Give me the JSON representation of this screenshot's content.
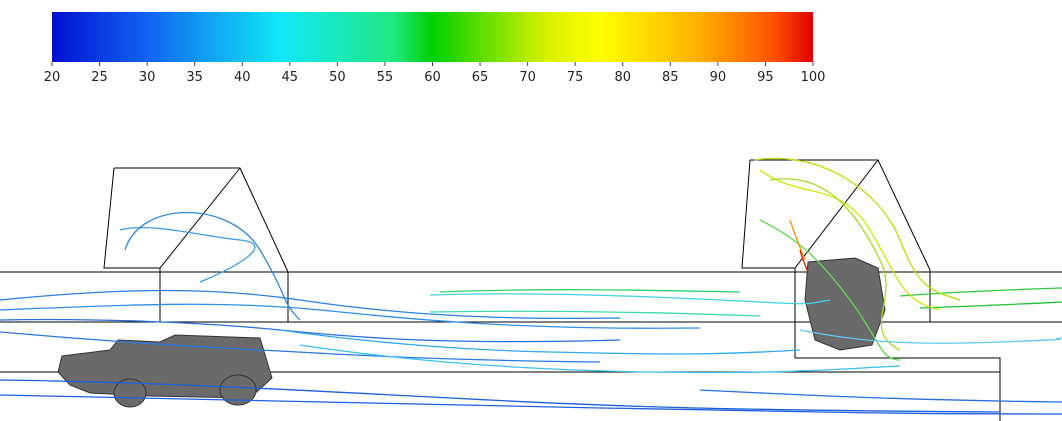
{
  "colorbar": {
    "lim": [
      20,
      100
    ],
    "ticks": [
      20,
      25,
      30,
      35,
      40,
      45,
      50,
      55,
      60,
      65,
      70,
      75,
      80,
      85,
      90,
      95,
      100
    ]
  }
}
